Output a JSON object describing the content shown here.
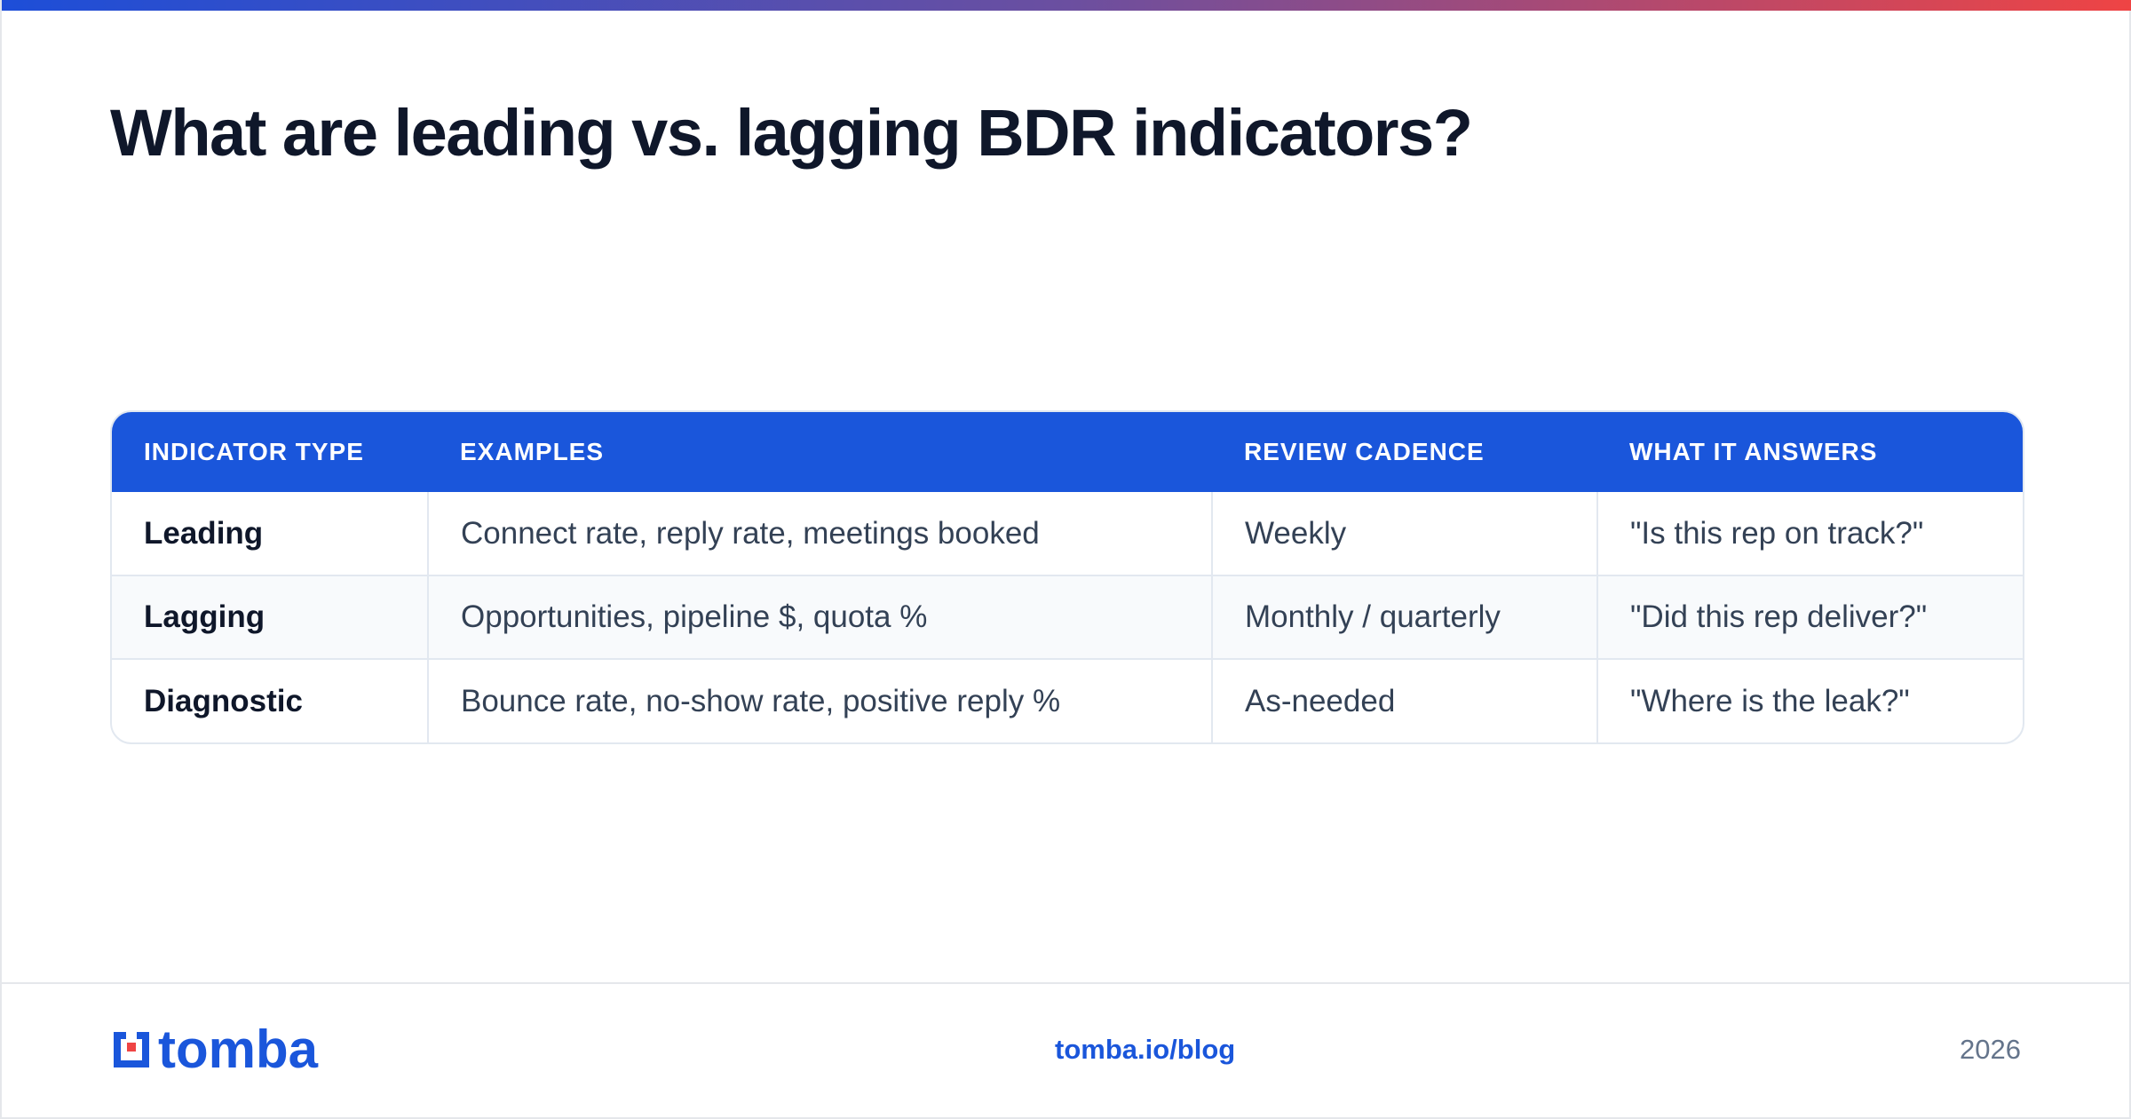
{
  "title": "What are leading vs. lagging BDR indicators?",
  "table": {
    "headers": [
      "INDICATOR TYPE",
      "EXAMPLES",
      "REVIEW CADENCE",
      "WHAT IT ANSWERS"
    ],
    "rows": [
      [
        "Leading",
        "Connect rate, reply rate, meetings booked",
        "Weekly",
        "\"Is this rep on track?\""
      ],
      [
        "Lagging",
        "Opportunities, pipeline $, quota %",
        "Monthly / quarterly",
        "\"Did this rep deliver?\""
      ],
      [
        "Diagnostic",
        "Bounce rate, no-show rate, positive reply %",
        "As-needed",
        "\"Where is the leak?\""
      ]
    ]
  },
  "footer": {
    "logo_text": "tomba",
    "link": "tomba.io/blog",
    "year": "2026"
  },
  "colors": {
    "accent": "#1a56db",
    "brand_red": "#ef4444",
    "title": "#0f172a"
  },
  "icons": {
    "logo": "tomba-logo-icon"
  }
}
